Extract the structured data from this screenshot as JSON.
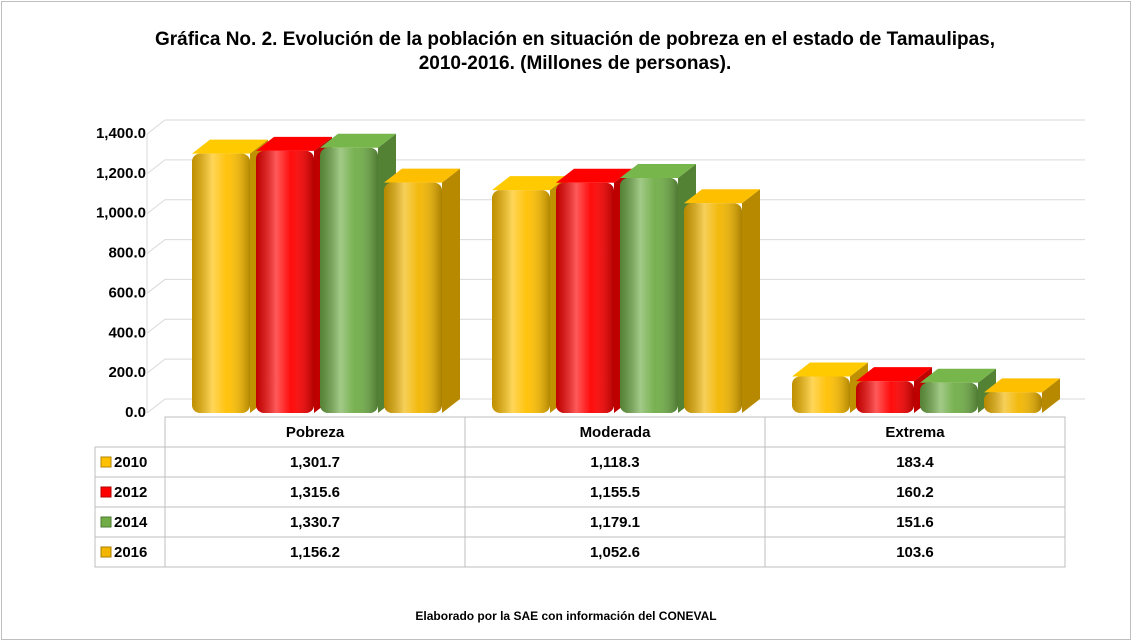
{
  "chart_data": {
    "type": "bar3d",
    "title": "Gráfica No. 2. Evolución de la población en situación de pobreza en el estado de Tamaulipas, 2010-2016. (Millones de personas).",
    "note": "Elaborado por la SAE con información del CONEVAL",
    "categories": [
      "Pobreza",
      "Moderada",
      "Extrema"
    ],
    "series": [
      {
        "name": "2010",
        "color": "#ffc000",
        "values": [
          1301.7,
          1118.3,
          183.4
        ],
        "value_labels": [
          "1,301.7",
          "1,118.3",
          "183.4"
        ]
      },
      {
        "name": "2012",
        "color": "#ff0000",
        "values": [
          1315.6,
          1155.5,
          160.2
        ],
        "value_labels": [
          "1,315.6",
          "1,155.5",
          "160.2"
        ]
      },
      {
        "name": "2014",
        "color": "#70ad47",
        "values": [
          1330.7,
          1179.1,
          151.6
        ],
        "value_labels": [
          "1,330.7",
          "1,179.1",
          "151.6"
        ]
      },
      {
        "name": "2016",
        "color": "#f2b600",
        "values": [
          1156.2,
          1052.6,
          103.6
        ],
        "value_labels": [
          "1,156.2",
          "1,052.6",
          "103.6"
        ]
      }
    ],
    "ylim": [
      0,
      1400
    ],
    "yticks": [
      {
        "value": 0,
        "label": "0.0"
      },
      {
        "value": 200,
        "label": "200.0"
      },
      {
        "value": 400,
        "label": "400.0"
      },
      {
        "value": 600,
        "label": "600.0"
      },
      {
        "value": 800,
        "label": "800.0"
      },
      {
        "value": 1000,
        "label": "1,000.0"
      },
      {
        "value": 1200,
        "label": "1,200.0"
      },
      {
        "value": 1400,
        "label": "1,400.0"
      }
    ],
    "grid": true
  }
}
